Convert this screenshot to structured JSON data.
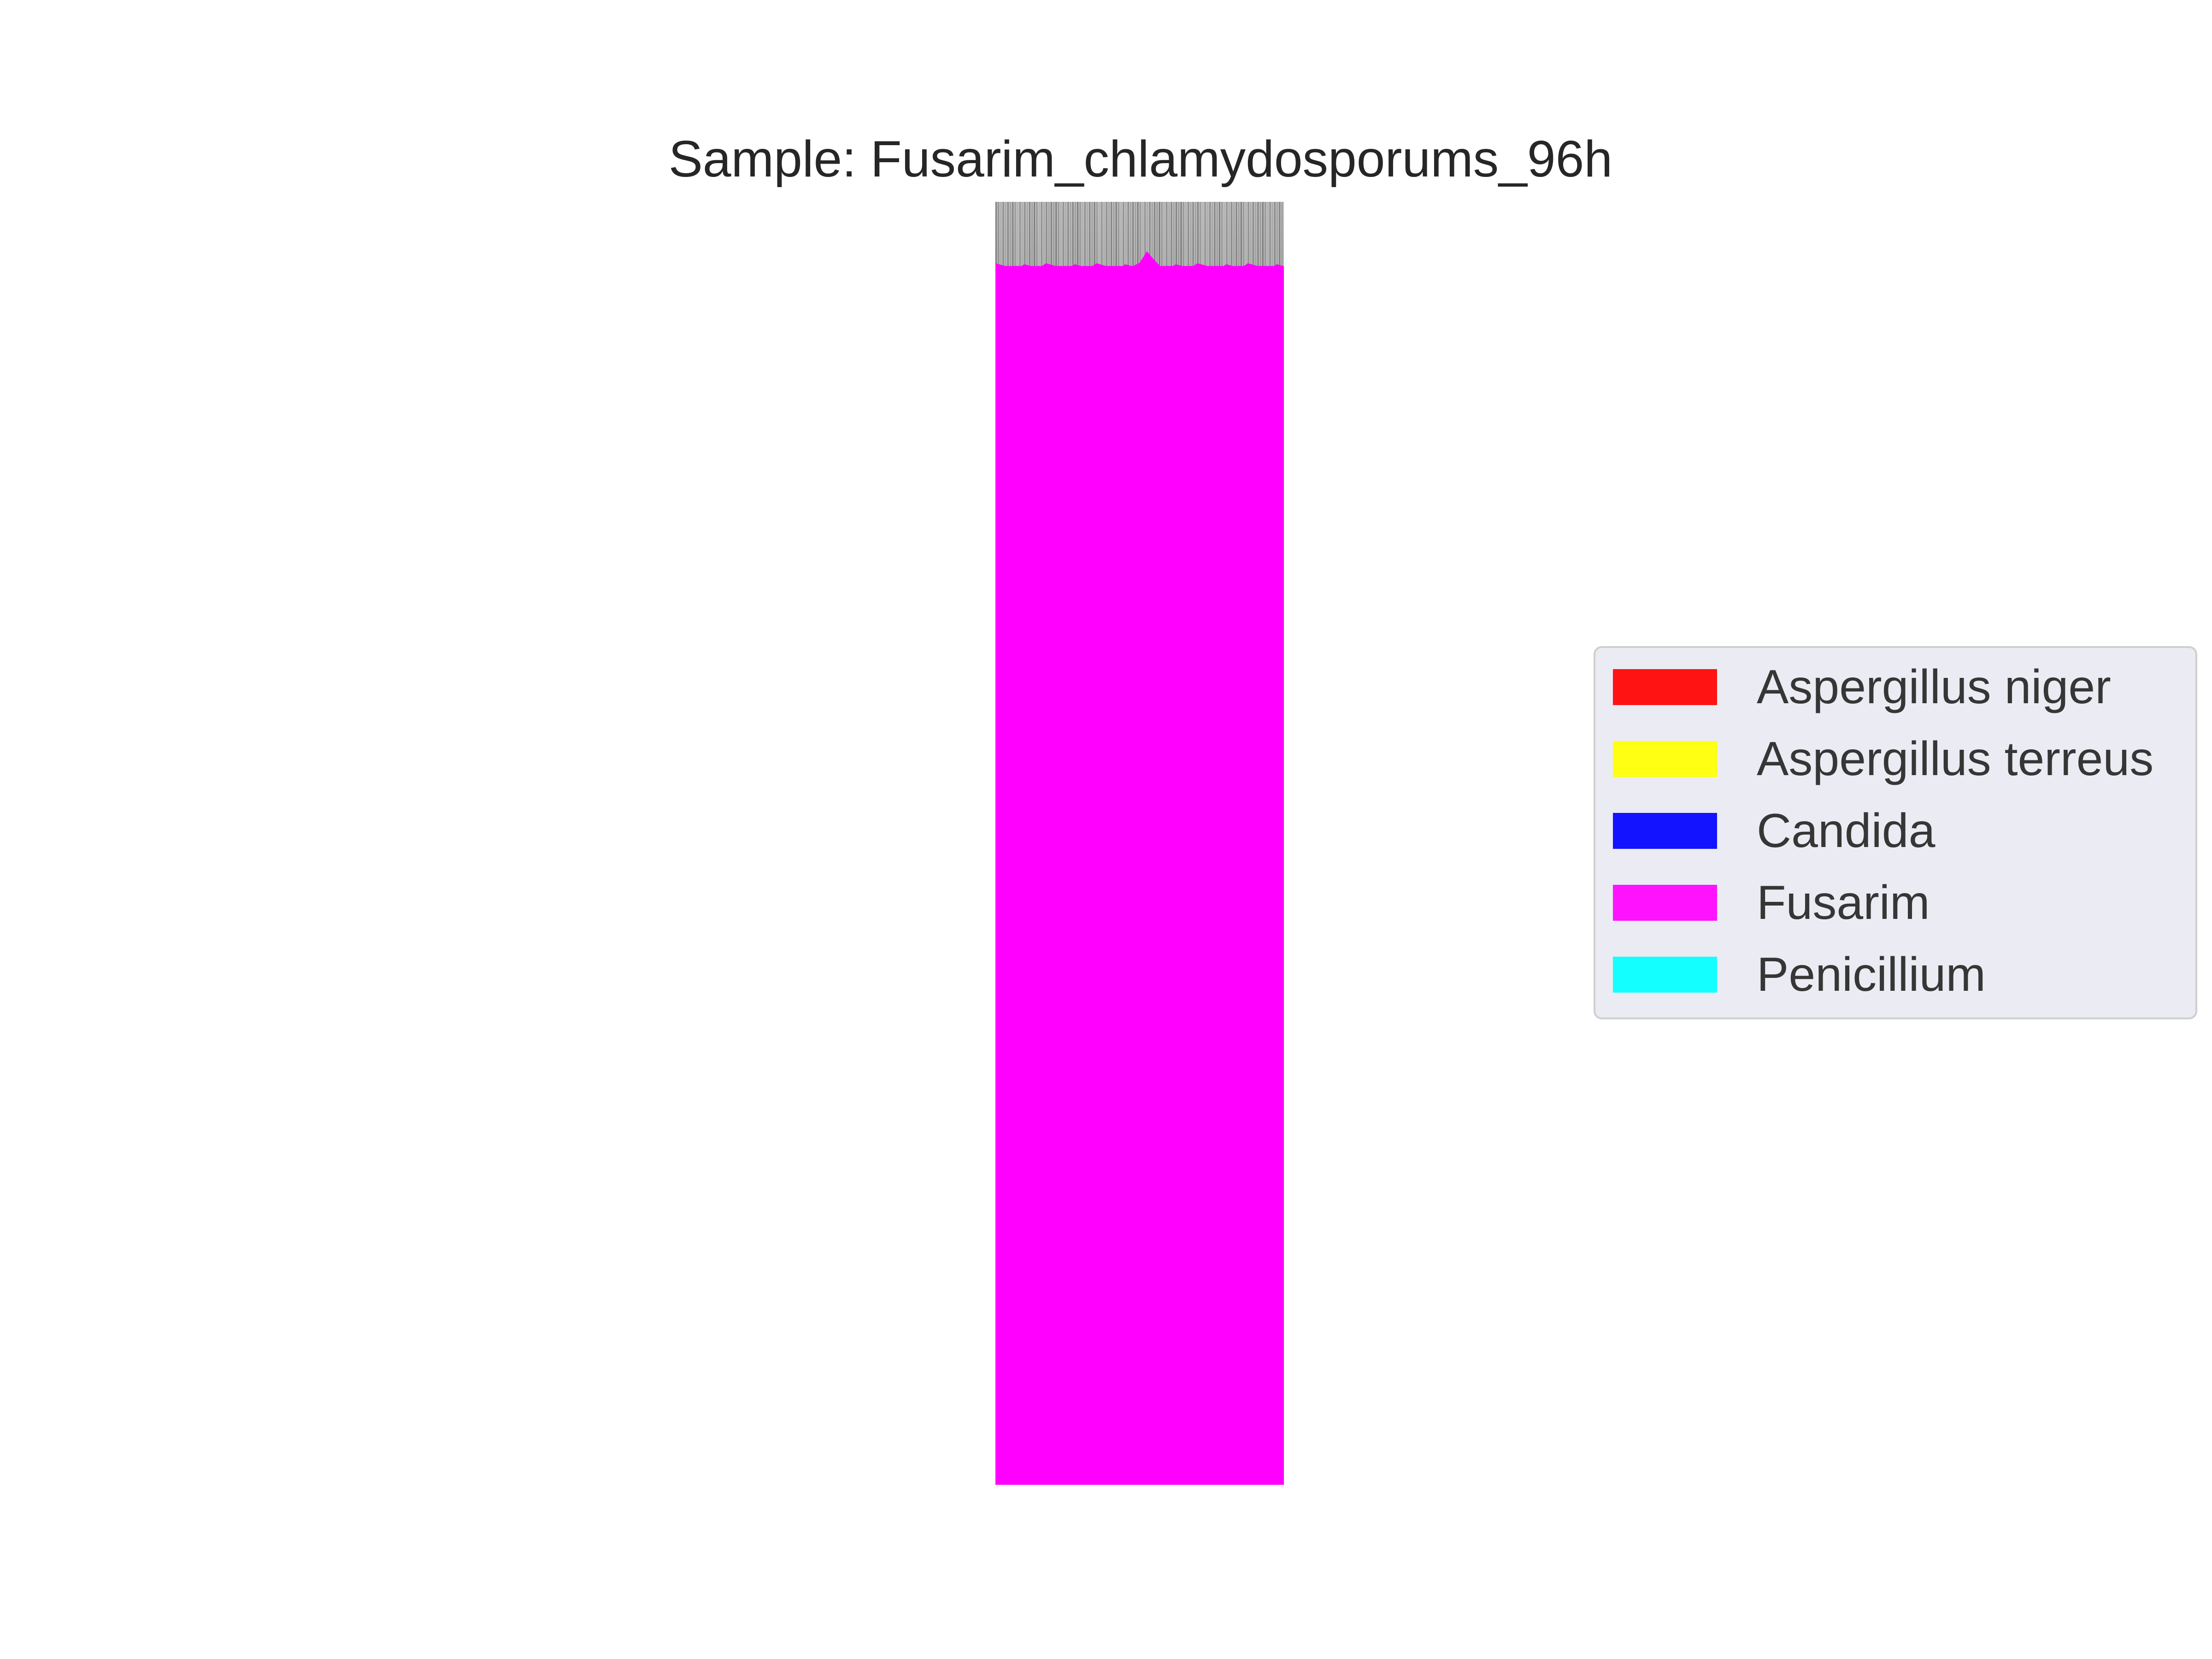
{
  "chart_data": {
    "type": "bar",
    "title": "Sample: Fusarim_chlamydosporums_96h",
    "xlabel": "",
    "ylabel": "",
    "axes_visible": false,
    "grid": false,
    "legend_position": "right",
    "categories": [
      "Fusarim_chlamydosporums_96h"
    ],
    "series": [
      {
        "name": "Aspergillus niger",
        "color": "#ff0000",
        "values": [
          0.0
        ]
      },
      {
        "name": "Aspergillus terreus",
        "color": "#ffff00",
        "values": [
          0.0
        ]
      },
      {
        "name": "Candida",
        "color": "#0000ff",
        "values": [
          0.0
        ]
      },
      {
        "name": "Fusarim",
        "color": "#ff00ff",
        "values": [
          0.95
        ]
      },
      {
        "name": "Penicillium",
        "color": "#00ffff",
        "values": [
          0.0
        ]
      }
    ],
    "ylim": [
      0,
      1
    ]
  }
}
